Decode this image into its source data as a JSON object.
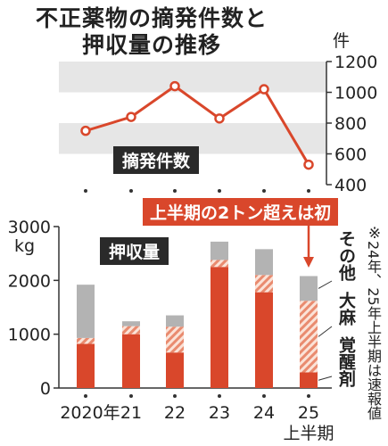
{
  "title_line1": "不正薬物の摘発件数と",
  "title_line2": "押収量の推移",
  "footnote_mark": "※",
  "footnote_text": "24年、25年上半期は速報値",
  "annotation": "上半期の2トン超えは初",
  "colors": {
    "line": "#d9472b",
    "stimulants": "#d9472b",
    "cannabis_stripe": "#e98b6f",
    "other": "#b3b3b3",
    "band": "#e6e6e6",
    "axis": "#333333"
  },
  "chart_data": [
    {
      "type": "line",
      "title": "摘発件数",
      "unit": "件",
      "categories": [
        "2020年",
        "21",
        "22",
        "23",
        "24",
        "25上半期"
      ],
      "values": [
        750,
        840,
        1040,
        830,
        1020,
        530
      ],
      "ylim": [
        400,
        1200
      ],
      "yticks": [
        400,
        600,
        800,
        1000,
        1200
      ],
      "grid": "alternating bands"
    },
    {
      "type": "bar",
      "title": "押収量",
      "unit": "kg",
      "stacked": true,
      "categories": [
        "2020年",
        "21",
        "22",
        "23",
        "24",
        "25上半期"
      ],
      "x_labels": [
        "2020年",
        "21",
        "22",
        "23",
        "24",
        "25"
      ],
      "x_sublabel": "上半期",
      "series": [
        {
          "name": "覚醒剤",
          "values": [
            820,
            1000,
            660,
            2250,
            1780,
            290
          ]
        },
        {
          "name": "大麻",
          "values": [
            110,
            150,
            480,
            130,
            320,
            1330
          ]
        },
        {
          "name": "その他",
          "values": [
            990,
            90,
            210,
            340,
            480,
            460
          ]
        }
      ],
      "ylim": [
        0,
        3000
      ],
      "yticks": [
        0,
        1000,
        2000,
        3000
      ],
      "legend": "right, labels beside last bar"
    }
  ]
}
